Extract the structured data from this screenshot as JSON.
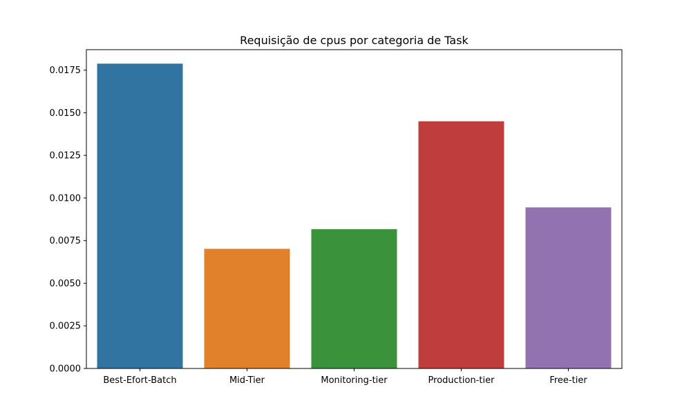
{
  "chart_data": {
    "type": "bar",
    "title": "Requisição de cpus por categoria de Task",
    "xlabel": "",
    "ylabel": "",
    "categories": [
      "Best-Efort-Batch",
      "Mid-Tier",
      "Monitoring-tier",
      "Production-tier",
      "Free-tier"
    ],
    "values": [
      0.01788,
      0.00702,
      0.00817,
      0.0145,
      0.00945
    ],
    "colors": [
      "#3274a1",
      "#e1812c",
      "#3a923a",
      "#c03d3e",
      "#9372b2"
    ],
    "ylim": [
      0,
      0.0187
    ],
    "yticks": [
      0.0,
      0.0025,
      0.005,
      0.0075,
      0.01,
      0.0125,
      0.015,
      0.0175
    ],
    "ytick_labels": [
      "0.0000",
      "0.0025",
      "0.0050",
      "0.0075",
      "0.0100",
      "0.0125",
      "0.0150",
      "0.0175"
    ],
    "grid": false,
    "legend": "none"
  }
}
